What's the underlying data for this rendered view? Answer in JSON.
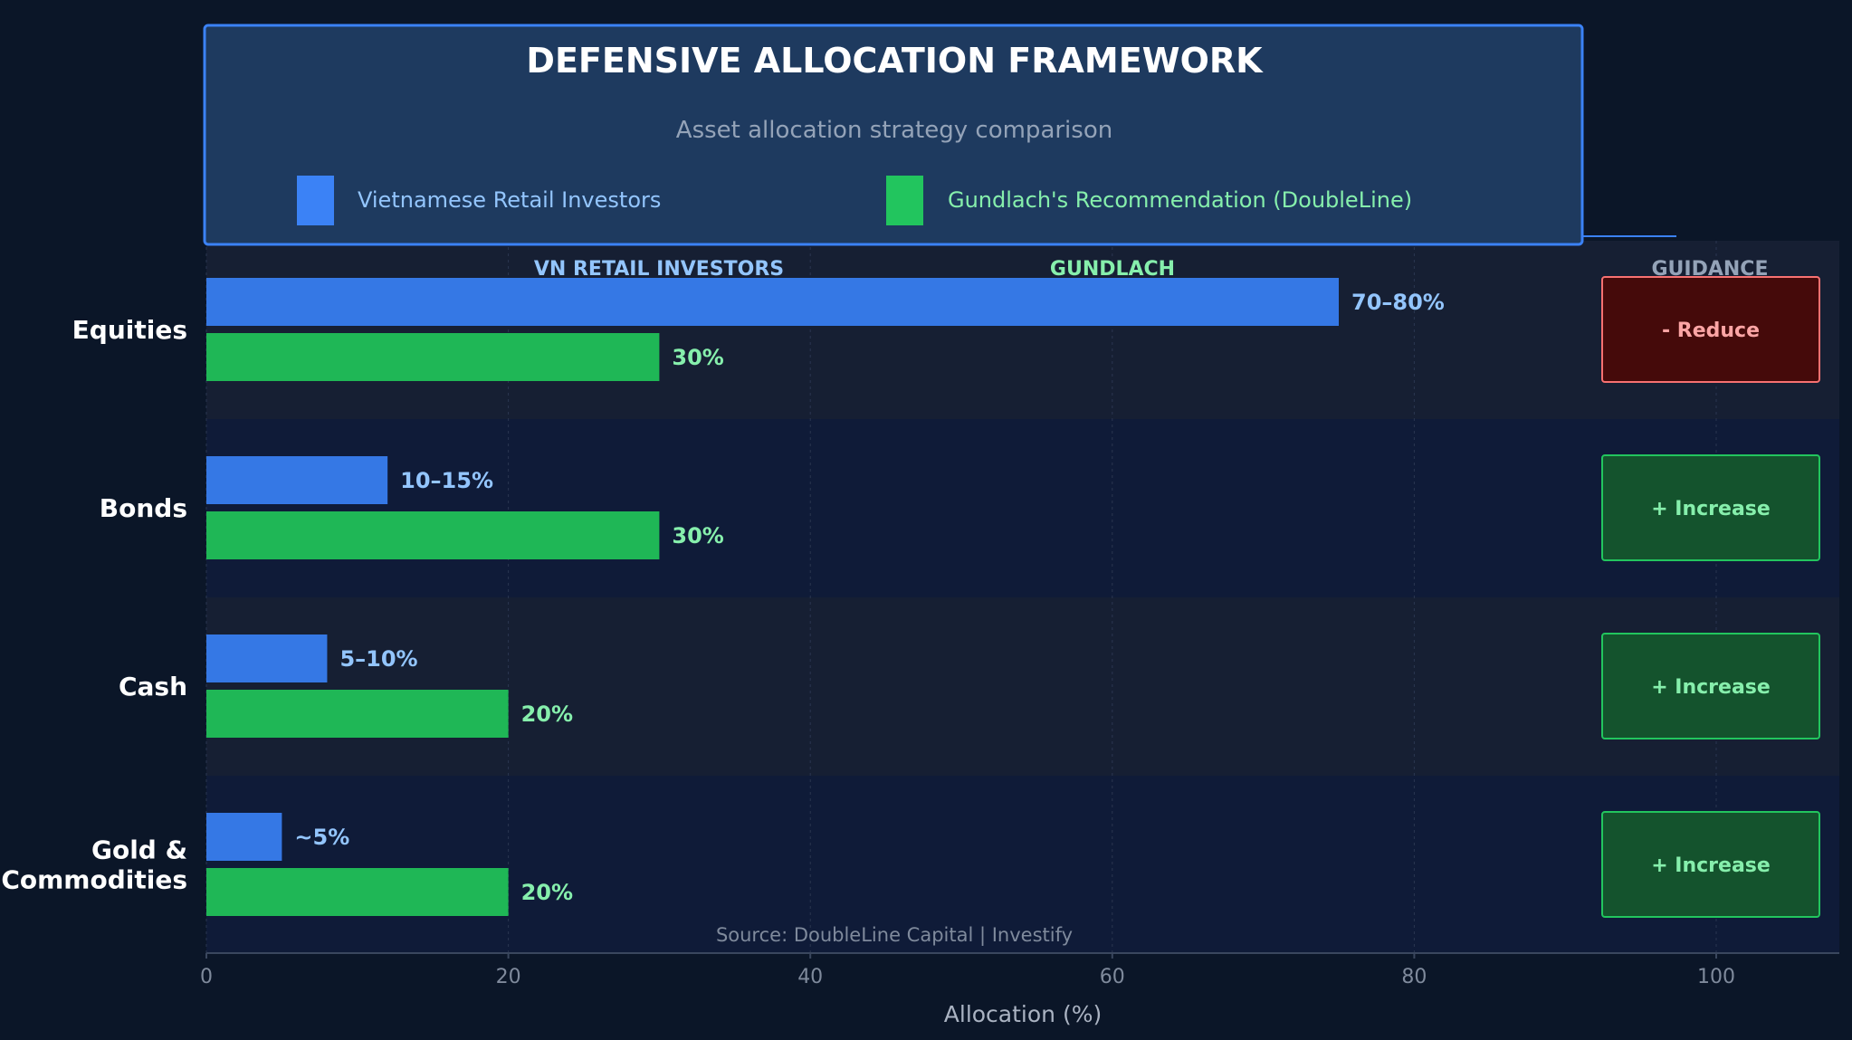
{
  "chart_data": {
    "type": "bar",
    "orientation": "horizontal",
    "title": "DEFENSIVE ALLOCATION FRAMEWORK",
    "subtitle": "Asset allocation strategy comparison",
    "xlabel": "Allocation (%)",
    "xlim": [
      0,
      108
    ],
    "xticks": [
      0,
      20,
      40,
      60,
      80,
      100
    ],
    "grid": true,
    "legend_position": "top",
    "categories": [
      "Equities",
      "Bonds",
      "Cash",
      "Gold & Commodities"
    ],
    "category_lines": [
      [
        "Equities"
      ],
      [
        "Bonds"
      ],
      [
        "Cash"
      ],
      [
        "Gold &",
        "Commodities"
      ]
    ],
    "series": [
      {
        "name": "Vietnamese Retail Investors",
        "values": [
          75,
          12,
          8,
          5
        ],
        "labels": [
          "70–80%",
          "10–15%",
          "5–10%",
          "~5%"
        ],
        "color": "#3b82f6",
        "bar_color": "#3578e5",
        "label_color": "#93c5fd"
      },
      {
        "name": "Gundlach's Recommendation (DoubleLine)",
        "values": [
          30,
          30,
          20,
          20
        ],
        "labels": [
          "30%",
          "30%",
          "20%",
          "20%"
        ],
        "color": "#22c55e",
        "bar_color": "#1fb756",
        "label_color": "#86efac"
      }
    ],
    "column_headers": {
      "retail": "VN RETAIL INVESTORS",
      "gundlach": "GUNDLACH",
      "guidance": "GUIDANCE"
    },
    "guidance": [
      {
        "label": "- Reduce",
        "kind": "reduce"
      },
      {
        "label": "+ Increase",
        "kind": "increase"
      },
      {
        "label": "+ Increase",
        "kind": "increase"
      },
      {
        "label": "+ Increase",
        "kind": "increase"
      }
    ],
    "source": "Source: DoubleLine Capital  |  Investify"
  },
  "colors": {
    "background": "#0b1628",
    "band_a": "#161f33",
    "band_b": "#0f1b38",
    "header_fill": "#1e3a5f",
    "header_border": "#3b82f6",
    "reduce_fill": "#450a0a",
    "reduce_border": "#f87171",
    "reduce_text": "#fca5a5",
    "increase_fill": "#14532d",
    "increase_border": "#22c55e",
    "increase_text": "#86efac"
  }
}
